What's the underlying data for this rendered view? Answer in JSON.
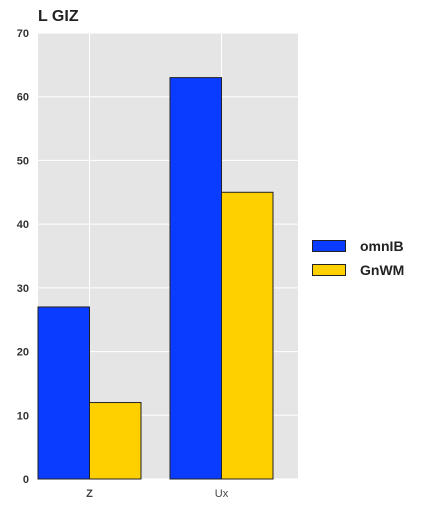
{
  "chart_data": {
    "type": "bar",
    "title": "L GIZ",
    "categories": [
      "Z",
      "Ux"
    ],
    "series": [
      {
        "name": "omnIB",
        "values": [
          27,
          63
        ],
        "color": "#0a3cff"
      },
      {
        "name": "GnWM",
        "values": [
          12,
          45
        ],
        "color": "#ffd000"
      }
    ],
    "xlabel": "",
    "ylabel": "",
    "ylim": [
      0,
      70
    ],
    "yticks": [
      0,
      10,
      20,
      30,
      40,
      50,
      60,
      70
    ],
    "grid": true,
    "legend_position": "right",
    "background_color": "#e5e5e5"
  }
}
